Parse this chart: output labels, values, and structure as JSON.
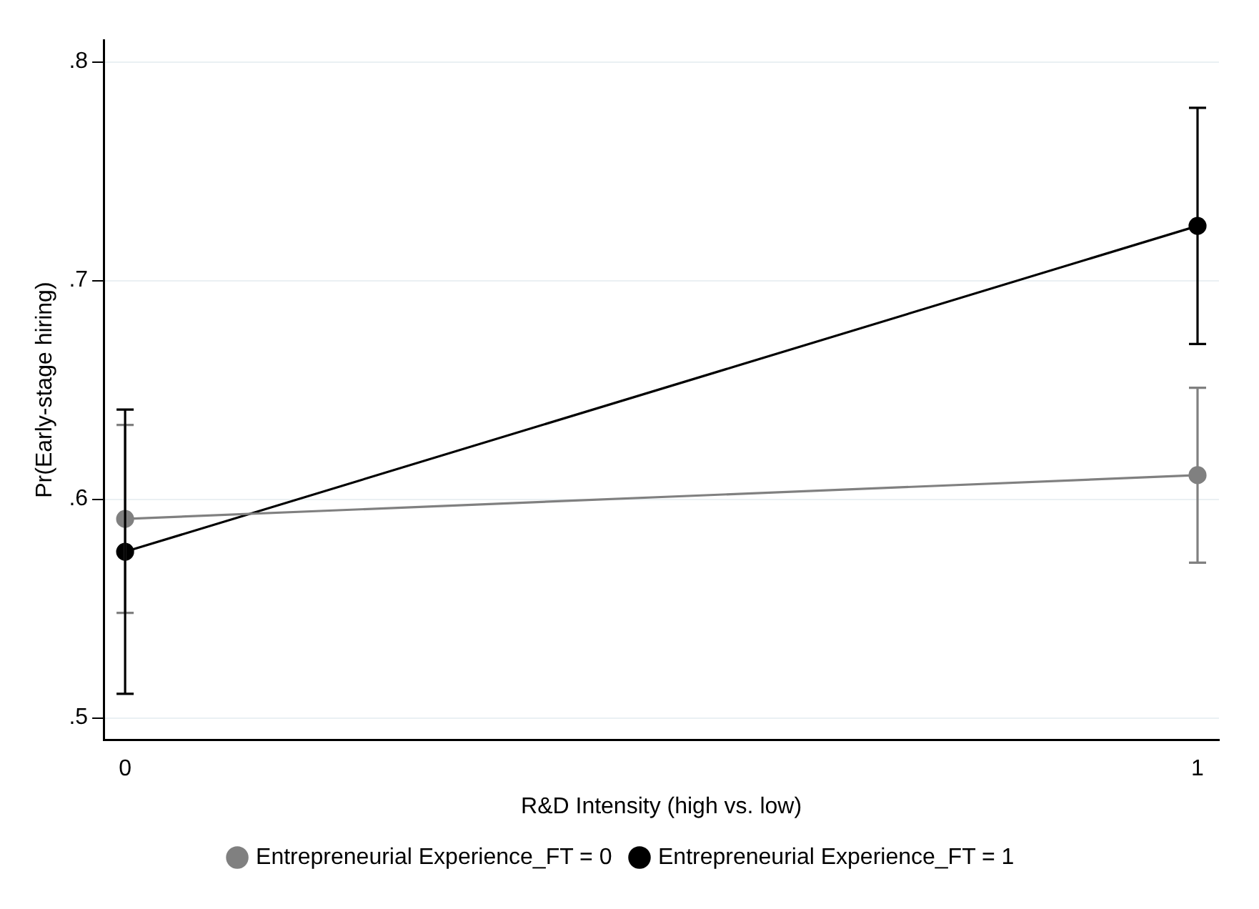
{
  "chart_data": {
    "type": "line",
    "xlabel": "R&D Intensity (high vs. low)",
    "ylabel": "Pr(Early-stage hiring)",
    "x": [
      0,
      1
    ],
    "xlim": [
      -0.02,
      1.02
    ],
    "xticks": [
      0,
      1
    ],
    "ylim": [
      0.49,
      0.81
    ],
    "yticks": [
      {
        "value": 0.5,
        "label": ".5"
      },
      {
        "value": 0.6,
        "label": ".6"
      },
      {
        "value": 0.7,
        "label": ".7"
      },
      {
        "value": 0.8,
        "label": ".8"
      }
    ],
    "series": [
      {
        "name": "Entrepreneurial Experience_FT = 0",
        "color": "#808080",
        "values": [
          0.591,
          0.611
        ],
        "errors": [
          [
            0.548,
            0.634
          ],
          [
            0.571,
            0.651
          ]
        ]
      },
      {
        "name": "Entrepreneurial Experience_FT = 1",
        "color": "#000000",
        "values": [
          0.576,
          0.725
        ],
        "errors": [
          [
            0.511,
            0.641
          ],
          [
            0.671,
            0.779
          ]
        ]
      }
    ],
    "grid": "y",
    "legend": "bottom",
    "marker": "circle",
    "line_style": "solid"
  }
}
